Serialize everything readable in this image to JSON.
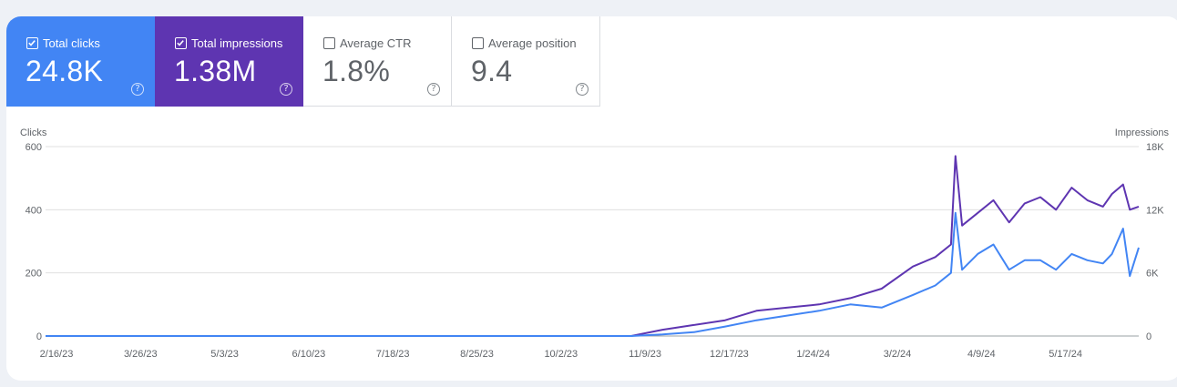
{
  "metrics": [
    {
      "label": "Total clicks",
      "value": "24.8K",
      "checked": true,
      "color": "#4285f4"
    },
    {
      "label": "Total impressions",
      "value": "1.38M",
      "checked": true,
      "color": "#5e35b1"
    },
    {
      "label": "Average CTR",
      "value": "1.8%",
      "checked": false,
      "color": "#ffffff"
    },
    {
      "label": "Average position",
      "value": "9.4",
      "checked": false,
      "color": "#ffffff"
    }
  ],
  "help_icon": "help-circle-icon",
  "chart_data": {
    "type": "line",
    "left_axis_label": "Clicks",
    "right_axis_label": "Impressions",
    "y_left": {
      "min": 0,
      "max": 600,
      "ticks": [
        "0",
        "200",
        "400",
        "600"
      ]
    },
    "y_right": {
      "min": 0,
      "max": 18000,
      "ticks": [
        "0",
        "6K",
        "12K",
        "18K"
      ]
    },
    "x_ticks": [
      "2/16/23",
      "3/26/23",
      "5/3/23",
      "6/10/23",
      "7/18/23",
      "8/25/23",
      "10/2/23",
      "11/9/23",
      "12/17/23",
      "1/24/24",
      "3/2/24",
      "4/9/24",
      "5/17/24"
    ],
    "grid": true,
    "legend": "none",
    "series": [
      {
        "name": "Clicks",
        "axis": "left",
        "color": "#4285f4",
        "x": [
          "2023-02-16",
          "2023-10-01",
          "2023-11-05",
          "2023-11-19",
          "2023-12-03",
          "2023-12-17",
          "2023-12-31",
          "2024-01-14",
          "2024-01-28",
          "2024-02-11",
          "2024-02-25",
          "2024-03-10",
          "2024-03-20",
          "2024-03-27",
          "2024-03-29",
          "2024-04-01",
          "2024-04-08",
          "2024-04-15",
          "2024-04-22",
          "2024-04-29",
          "2024-05-06",
          "2024-05-13",
          "2024-05-20",
          "2024-05-27",
          "2024-06-03",
          "2024-06-07",
          "2024-06-12",
          "2024-06-15",
          "2024-06-19"
        ],
        "values": [
          0,
          0,
          0,
          5,
          12,
          30,
          50,
          65,
          80,
          100,
          90,
          130,
          160,
          200,
          390,
          210,
          260,
          290,
          210,
          240,
          240,
          210,
          260,
          240,
          230,
          260,
          340,
          190,
          280
        ]
      },
      {
        "name": "Impressions",
        "axis": "right",
        "color": "#5e35b1",
        "x": [
          "2023-02-16",
          "2023-10-01",
          "2023-11-05",
          "2023-11-19",
          "2023-12-03",
          "2023-12-17",
          "2023-12-31",
          "2024-01-14",
          "2024-01-28",
          "2024-02-11",
          "2024-02-25",
          "2024-03-10",
          "2024-03-20",
          "2024-03-27",
          "2024-03-29",
          "2024-04-01",
          "2024-04-08",
          "2024-04-15",
          "2024-04-22",
          "2024-04-29",
          "2024-05-06",
          "2024-05-13",
          "2024-05-20",
          "2024-05-27",
          "2024-06-03",
          "2024-06-07",
          "2024-06-12",
          "2024-06-15",
          "2024-06-19"
        ],
        "values": [
          0,
          0,
          0,
          600,
          1050,
          1500,
          2400,
          2700,
          3000,
          3600,
          4500,
          6600,
          7500,
          8700,
          17100,
          10500,
          11700,
          12900,
          10800,
          12600,
          13200,
          12000,
          14100,
          12900,
          12300,
          13500,
          14400,
          12000,
          12300
        ]
      }
    ]
  }
}
